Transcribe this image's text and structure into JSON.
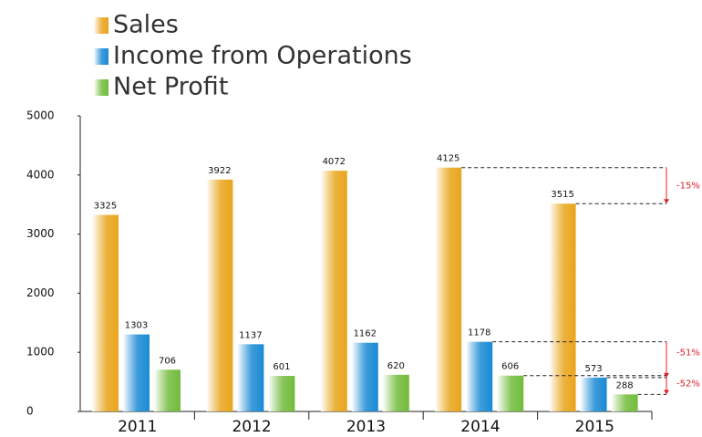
{
  "chart_data": {
    "type": "bar",
    "categories": [
      "2011",
      "2012",
      "2013",
      "2014",
      "2015"
    ],
    "series": [
      {
        "name": "Sales",
        "color": "#e9a51c",
        "values": [
          3325,
          3922,
          4072,
          4125,
          3515
        ]
      },
      {
        "name": "Income from Operations",
        "color": "#1a8ad4",
        "values": [
          1303,
          1137,
          1162,
          1178,
          573
        ]
      },
      {
        "name": "Net Profit",
        "color": "#72bb3c",
        "values": [
          706,
          601,
          620,
          606,
          288
        ]
      }
    ],
    "ylim": [
      0,
      5000
    ],
    "yticks": [
      0,
      1000,
      2000,
      3000,
      4000,
      5000
    ],
    "annotations": [
      "-15%",
      "-51%",
      "-52%"
    ],
    "legend": "top-left",
    "grid": false
  }
}
